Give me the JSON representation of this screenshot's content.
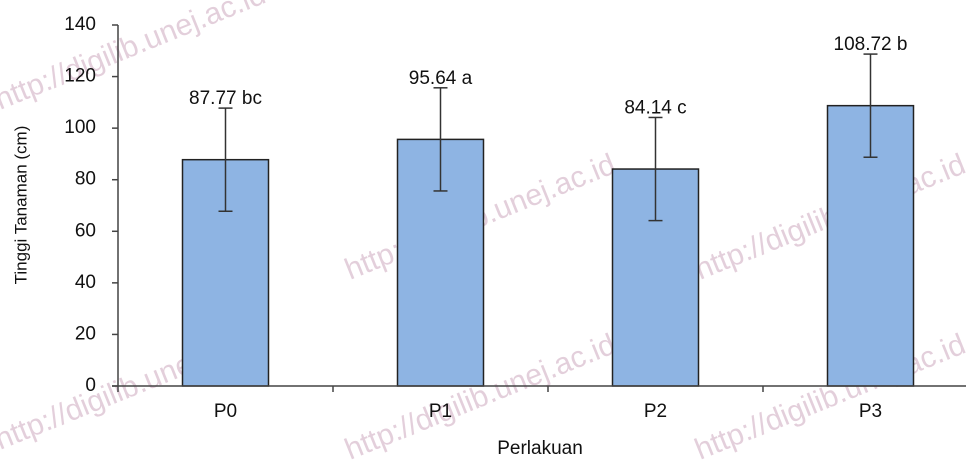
{
  "chart_data": {
    "type": "bar",
    "categories": [
      "P0",
      "P1",
      "P2",
      "P3"
    ],
    "values": [
      87.77,
      95.64,
      84.14,
      108.72
    ],
    "value_labels": [
      "87.77 bc",
      "95.64 a",
      "84.14 c",
      "108.72 b"
    ],
    "errors": [
      20,
      20,
      20,
      20
    ],
    "color": "#8eb4e3",
    "xlabel": "Perlakuan",
    "ylabel": "Tinggi Tanaman (cm)",
    "ylim": [
      0,
      140
    ],
    "yticks": [
      0,
      20,
      40,
      60,
      80,
      100,
      120,
      140
    ],
    "grid": false,
    "watermark": "http://digilib.unej.ac.id"
  }
}
